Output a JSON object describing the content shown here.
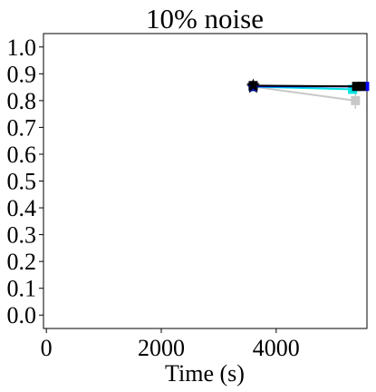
{
  "chart_data": {
    "type": "line",
    "title": "10% noise",
    "xlabel": "Time (s)",
    "ylabel": "",
    "xlim": [
      -50,
      5580
    ],
    "ylim": [
      -0.05,
      1.05
    ],
    "xticks": [
      0,
      2000,
      4000
    ],
    "xtick_labels": [
      "0",
      "2000",
      "4000"
    ],
    "yticks": [
      0.0,
      0.1,
      0.2,
      0.3,
      0.4,
      0.5,
      0.6,
      0.7,
      0.8,
      0.9,
      1.0
    ],
    "ytick_labels": [
      "0.0",
      "0.1",
      "0.2",
      "0.3",
      "0.4",
      "0.5",
      "0.6",
      "0.7",
      "0.8",
      "0.9",
      "1.0"
    ],
    "grid": false,
    "series": [
      {
        "color": "#c8c8c8",
        "marker": "square",
        "x": [
          3600,
          5380
        ],
        "y": [
          0.852,
          0.8
        ],
        "yerr": [
          0.0,
          0.03
        ]
      },
      {
        "color": "#00e5e5",
        "marker": "square",
        "x": [
          3600,
          5330
        ],
        "y": [
          0.852,
          0.842
        ]
      },
      {
        "color": "#0000ff",
        "marker": "square",
        "x": [
          3600,
          5540
        ],
        "y": [
          0.853,
          0.853
        ]
      },
      {
        "color": "#000000",
        "marker": "square",
        "x": [
          3600,
          5400,
          5480
        ],
        "y": [
          0.856,
          0.853,
          0.853
        ]
      },
      {
        "color": "#0000ff",
        "marker": "star",
        "x": [
          3600
        ],
        "y": [
          0.85
        ]
      },
      {
        "color": "#000000",
        "marker": "star",
        "x": [
          3600
        ],
        "y": [
          0.856
        ]
      }
    ]
  }
}
